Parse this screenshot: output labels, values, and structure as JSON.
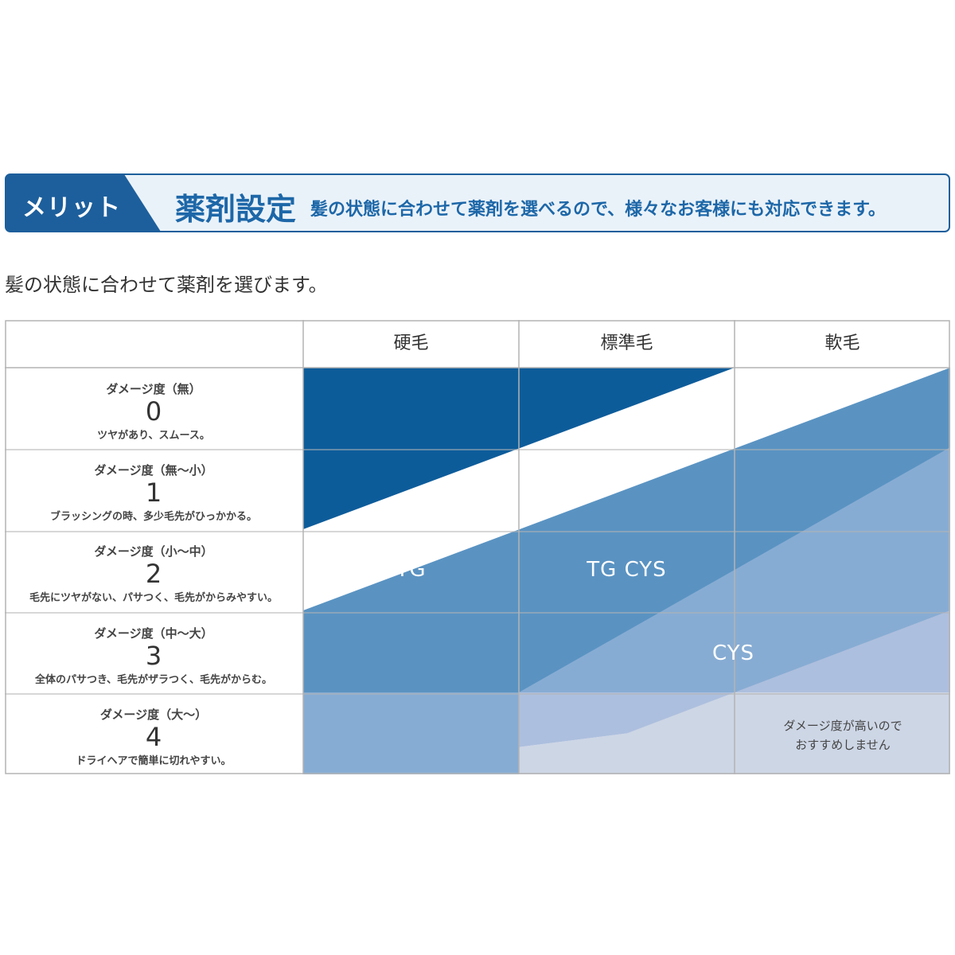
{
  "banner": {
    "tag": "メリット",
    "title": "薬剤設定",
    "description": "髪の状態に合わせて薬剤を選べるので、様々なお客様にも対応できます。"
  },
  "intro": "髪の状態に合わせて薬剤を選びます。",
  "table": {
    "columns": [
      "硬毛",
      "標準毛",
      "軟毛"
    ],
    "rows": [
      {
        "level": "ダメージ度（無）",
        "number": "0",
        "description": "ツヤがあり、スムース。"
      },
      {
        "level": "ダメージ度（無～小）",
        "number": "1",
        "description": "ブラッシングの時、多少毛先がひっかかる。"
      },
      {
        "level": "ダメージ度（小～中）",
        "number": "2",
        "description": "毛先にツヤがない、パサつく、毛先がからみやすい。"
      },
      {
        "level": "ダメージ度（中～大）",
        "number": "3",
        "description": "全体のパサつき、毛先がザラつく、毛先がからむ。"
      },
      {
        "level": "ダメージ度（大～）",
        "number": "4",
        "description": "ドライヘアで簡単に切れやすい。"
      }
    ],
    "zone_labels": {
      "tg": "TG",
      "tg_cys": "TG CYS",
      "cys": "CYS"
    },
    "note": [
      "ダメージ度が高いので",
      "おすすめしません"
    ]
  },
  "colors": {
    "banner_dark": "#1d5f9c",
    "banner_light": "#eaf2f9",
    "zone_dark": "#0d5c9a",
    "zone_mid": "#5a93c2",
    "zone_light": "#87acd3",
    "zone_pale": "#adbfde",
    "zone_grey": "#cdd6e5"
  }
}
